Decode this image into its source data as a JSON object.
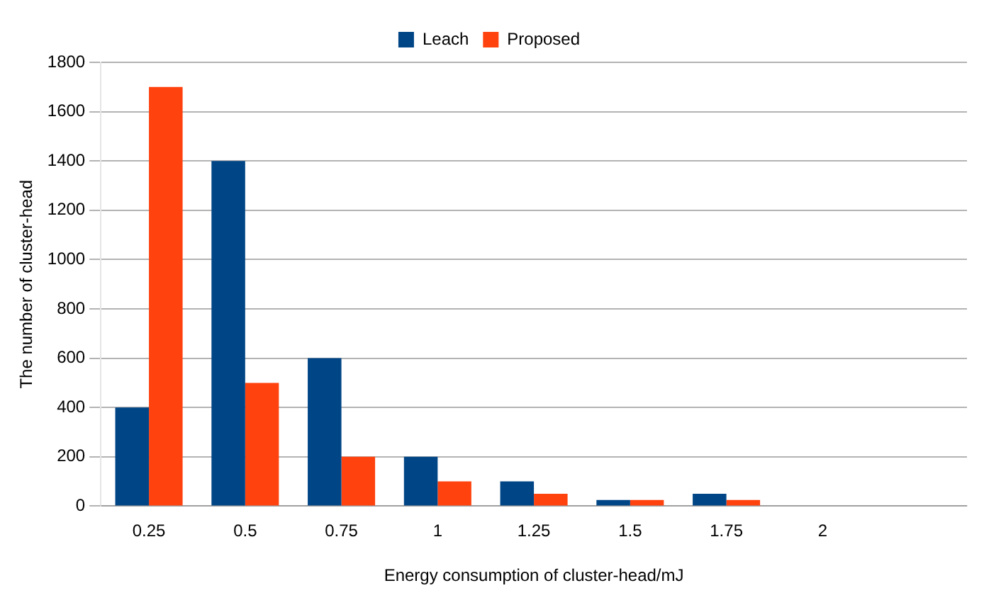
{
  "chart_data": {
    "type": "bar",
    "xlabel": "Energy consumption of cluster-head/mJ",
    "ylabel": "The number of cluster-head",
    "categories": [
      "0.25",
      "0.5",
      "0.75",
      "1",
      "1.25",
      "1.5",
      "1.75",
      "2",
      null
    ],
    "series": [
      {
        "name": "Leach",
        "color": "#004586",
        "values": [
          400,
          1400,
          600,
          200,
          100,
          25,
          50,
          0,
          null
        ]
      },
      {
        "name": "Proposed",
        "color": "#ff420e",
        "values": [
          1700,
          500,
          200,
          100,
          50,
          25,
          25,
          0,
          null
        ]
      }
    ],
    "ylim": [
      0,
      1800
    ],
    "yticks": [
      0,
      200,
      400,
      600,
      800,
      1000,
      1200,
      1400,
      1600,
      1800
    ],
    "grid": "y",
    "legend": "top"
  }
}
